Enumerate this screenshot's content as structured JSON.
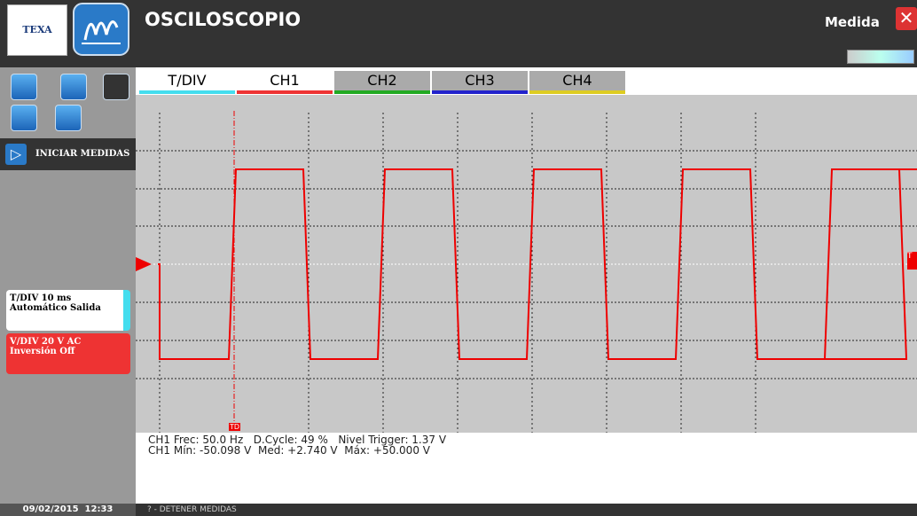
{
  "header": {
    "logo": "TEXA",
    "title": "OSCILOSCOPIO",
    "mode": "Medida"
  },
  "tabs": [
    "T/DIV",
    "CH1",
    "CH2",
    "CH3",
    "CH4"
  ],
  "sidebar": {
    "start_button": "INICIAR MEDIDAS",
    "tdiv": {
      "line1": "T/DIV  10 ms",
      "line2": "Automático  Salida"
    },
    "vdiv": {
      "line1": "V/DIV  20 V  AC",
      "line2": "Inversión  Off"
    }
  },
  "plot": {
    "trigger_delay_marker": "TD",
    "trigger_level_marker": "T"
  },
  "measurements": [
    "CH1 Frec: 50.0 Hz   D.Cycle: 49 %   Nivel Trigger: 1.37 V",
    "CH1 Mín: -50.098 V  Med: +2.740 V  Máx: +50.000 V"
  ],
  "footer": {
    "datetime": "09/02/2015  12:33",
    "hint": "? - DETENER MEDIDAS"
  }
}
